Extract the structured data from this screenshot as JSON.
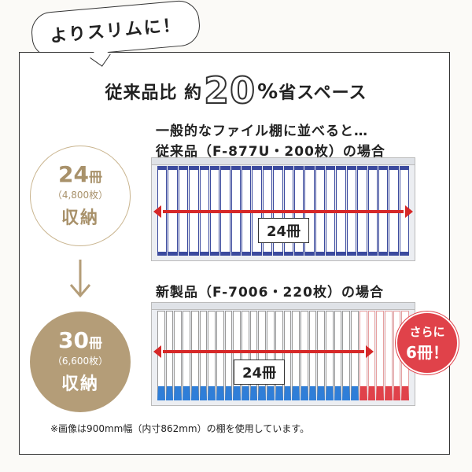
{
  "callout": "よりスリムに！",
  "headline": {
    "prefix": "従来品比 約",
    "number": "20",
    "unit": "%",
    "suffix": "省スペース"
  },
  "intro_line": "一般的なファイル棚に並べると…",
  "old": {
    "label": "従来品（F-877U・200枚）の場合",
    "count": "24",
    "count_unit": "冊",
    "sheets": "（4,800枚）",
    "storage": "収納",
    "arrow_label": "24冊",
    "book_count": 24
  },
  "new": {
    "label": "新製品（F-7006・220枚）の場合",
    "count": "30",
    "count_unit": "冊",
    "sheets": "（6,600枚）",
    "storage": "収納",
    "arrow_label": "24冊",
    "book_count": 30,
    "extra_count": 6
  },
  "extra_badge": {
    "line1": "さらに",
    "line2": "6冊！"
  },
  "footnote": "※画像は900mm幅（内寸862mm）の棚を使用しています。",
  "colors": {
    "accent_gold": "#b49d78",
    "arrow_red": "#d62828",
    "old_binder_blue": "#3b4a9e",
    "new_binder_blue": "#2f7ed8",
    "new_binder_red": "#e0424a"
  }
}
